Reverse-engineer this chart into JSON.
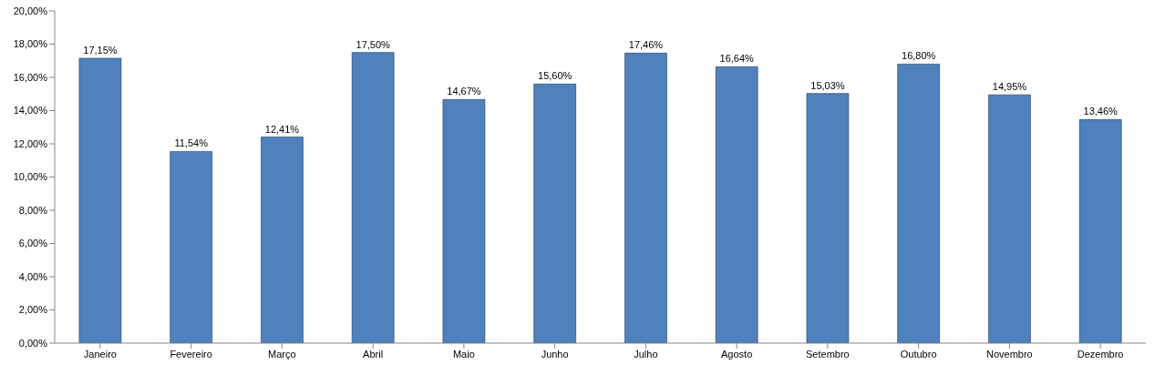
{
  "chart_data": {
    "type": "bar",
    "categories": [
      "Janeiro",
      "Fevereiro",
      "Março",
      "Abril",
      "Maio",
      "Junho",
      "Julho",
      "Agosto",
      "Setembro",
      "Outubro",
      "Novembro",
      "Dezembro"
    ],
    "values": [
      17.15,
      11.54,
      12.41,
      17.5,
      14.67,
      15.6,
      17.46,
      16.64,
      15.03,
      16.8,
      14.95,
      13.46
    ],
    "value_labels": [
      "17,15%",
      "11,54%",
      "12,41%",
      "17,50%",
      "14,67%",
      "15,60%",
      "17,46%",
      "16,64%",
      "15,03%",
      "16,80%",
      "14,95%",
      "13,46%"
    ],
    "color": "#4f81bd",
    "ylim": [
      0,
      20
    ],
    "yticks": [
      {
        "value": 0,
        "label": "0,00%"
      },
      {
        "value": 2,
        "label": "2,00%"
      },
      {
        "value": 4,
        "label": "4,00%"
      },
      {
        "value": 6,
        "label": "6,00%"
      },
      {
        "value": 8,
        "label": "8,00%"
      },
      {
        "value": 10,
        "label": "10,00%"
      },
      {
        "value": 12,
        "label": "12,00%"
      },
      {
        "value": 14,
        "label": "14,00%"
      },
      {
        "value": 16,
        "label": "16,00%"
      },
      {
        "value": 18,
        "label": "18,00%"
      },
      {
        "value": 20,
        "label": "20,00%"
      }
    ],
    "grid": false,
    "legend": false
  }
}
